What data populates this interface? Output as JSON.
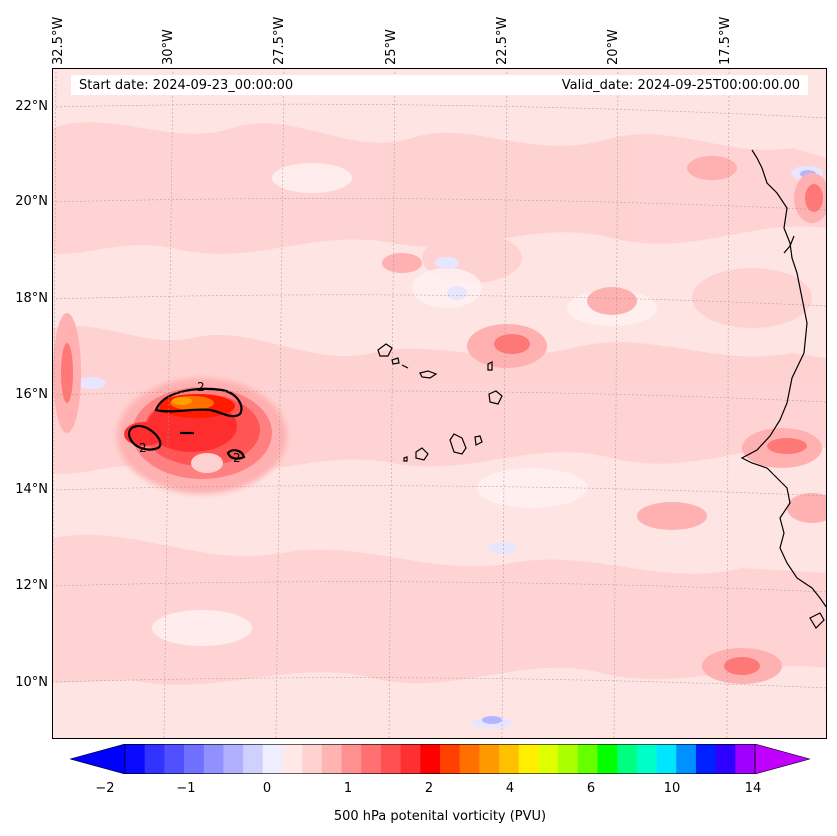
{
  "map": {
    "start_date": "Start date: 2024-09-23_00:00:00",
    "valid_date": "Valid_date: 2024-09-25T00:00:00.00",
    "lon_labels": [
      "32.5°W",
      "30°W",
      "27.5°W",
      "25°W",
      "22.5°W",
      "20°W",
      "17.5°W"
    ],
    "lat_labels": [
      "22°N",
      "20°N",
      "18°N",
      "16°N",
      "14°N",
      "12°N",
      "10°N"
    ],
    "contour_labels": [
      "2",
      "2",
      "2"
    ],
    "region": {
      "lon_min": -33,
      "lon_max": -15.5,
      "lat_min": 8.8,
      "lat_max": 22.8
    }
  },
  "colorbar": {
    "label": "500 hPa potenital vorticity (PVU)",
    "ticks": [
      "−2",
      "−1",
      "0",
      "1",
      "2",
      "4",
      "6",
      "10",
      "14"
    ],
    "colors": [
      "#0a0aff",
      "#3333ff",
      "#5050ff",
      "#7070ff",
      "#9090ff",
      "#b0b0ff",
      "#d0d0ff",
      "#eeeeff",
      "#ffe8e8",
      "#ffd2d2",
      "#ffb4b4",
      "#ff9090",
      "#ff7070",
      "#ff5050",
      "#ff3030",
      "#ff0000",
      "#ff4000",
      "#ff7000",
      "#ff9900",
      "#ffc000",
      "#ffee00",
      "#ddff00",
      "#aaff00",
      "#66ff00",
      "#00ff00",
      "#00ff80",
      "#00ffc8",
      "#00e6ff",
      "#0090ff",
      "#0020ff",
      "#3000ff",
      "#a000ff"
    ],
    "under_color": "#0000ff",
    "over_color": "#c000ff"
  }
}
